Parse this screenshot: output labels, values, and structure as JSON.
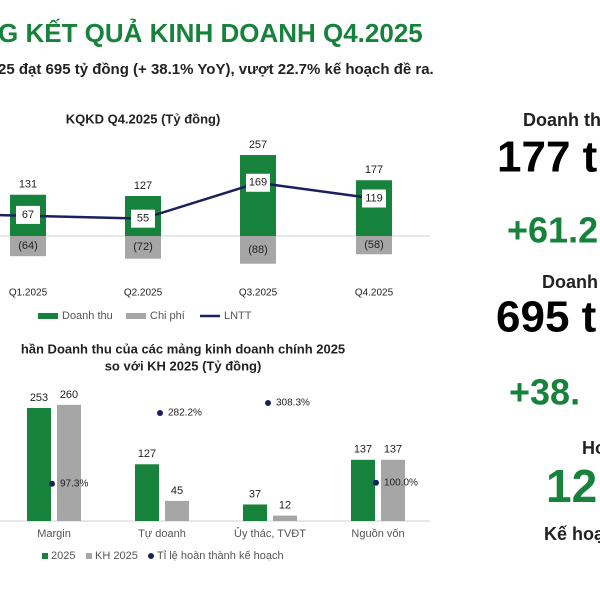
{
  "header": {
    "title": "G KẾT QUẢ KINH DOANH Q4.2025",
    "subtitle": "25 đạt 695 tỷ đồng (+ 38.1% YoY), vượt 22.7% kế hoạch đề ra."
  },
  "chart_data": [
    {
      "type": "combo",
      "title": "KQKD Q4.2025 (Tỷ đồng)",
      "categories": [
        "Q1.2025",
        "Q2.2025",
        "Q3.2025",
        "Q4.2025"
      ],
      "ylim": [
        -100,
        300
      ],
      "series": [
        {
          "name": "Doanh thu",
          "color": "#17823b",
          "type": "bar",
          "values": [
            131,
            127,
            257,
            177
          ]
        },
        {
          "name": "Chi phí",
          "color": "#a6a6a6",
          "type": "bar",
          "values": [
            -64,
            -72,
            -88,
            -58
          ],
          "value_labels": [
            "(64)",
            "(72)",
            "(88)",
            "(58)"
          ]
        },
        {
          "name": "LNTT",
          "color": "#1c1f5e",
          "type": "line",
          "values": [
            67,
            55,
            169,
            119
          ]
        }
      ]
    },
    {
      "type": "grouped",
      "title": [
        "hần Doanh thu của các mảng kinh doanh chính 2025",
        "so với KH 2025 (Tỷ đồng)"
      ],
      "categories": [
        "Margin",
        "Tự doanh",
        "Ủy thác, TVĐT",
        "Nguồn vốn"
      ],
      "ylim": [
        0,
        300
      ],
      "y2lim": [
        0,
        350
      ],
      "series": [
        {
          "name": "2025",
          "color": "#17823b",
          "type": "bar",
          "values": [
            253,
            127,
            37,
            137
          ]
        },
        {
          "name": "KH 2025",
          "color": "#a6a6a6",
          "type": "bar",
          "values": [
            260,
            45,
            12,
            137
          ]
        },
        {
          "name": "Tỉ lệ hoàn thành kế hoạch",
          "color": "#1c1f5e",
          "type": "dot",
          "axis": "y2",
          "values": [
            97.3,
            282.2,
            308.3,
            100.0
          ],
          "value_labels": [
            "97.3%",
            "282.2%",
            "308.3%",
            "100.0%"
          ]
        }
      ]
    }
  ],
  "highlights": [
    "Doanh thu",
    "177 t",
    "+61.2",
    "Doanh",
    "695 t",
    "+38.",
    "Ho",
    "12",
    "Kế hoạ"
  ]
}
